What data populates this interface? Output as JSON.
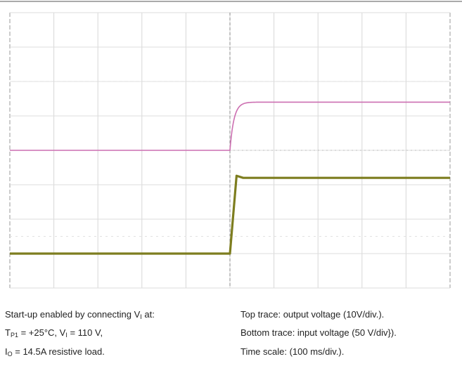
{
  "chart_data": {
    "type": "line",
    "grid": true,
    "x_divisions": 10,
    "y_divisions": 8,
    "series": [
      {
        "name": "Top trace: output voltage",
        "color": "#cc6fb1",
        "units": "div",
        "x": [
          0,
          1,
          2,
          3,
          4,
          5,
          6,
          7,
          8,
          9,
          10
        ],
        "y": [
          4.0,
          4.0,
          4.0,
          4.0,
          4.0,
          5.4,
          5.4,
          5.4,
          5.4,
          5.4,
          5.4
        ]
      },
      {
        "name": "Bottom trace: input voltage",
        "color": "#7d7d1f",
        "units": "div",
        "x": [
          0,
          1,
          2,
          3,
          4,
          5,
          6,
          7,
          8,
          9,
          10
        ],
        "y": [
          1.0,
          1.0,
          1.0,
          1.0,
          1.0,
          3.2,
          3.2,
          3.2,
          3.2,
          3.2,
          3.2
        ]
      }
    ],
    "events": {
      "startup_time_div": 5
    }
  },
  "caption": {
    "left_line1_a": "Start-up enabled by connecting V",
    "left_line1_sub": "I",
    "left_line1_b": " at:",
    "left_line2_a": "T",
    "left_line2_sub1": "P1",
    "left_line2_b": " = +25°C, V",
    "left_line2_sub2": "I",
    "left_line2_c": " = 110 V,",
    "left_line3_a": "I",
    "left_line3_sub": "O",
    "left_line3_b": " = 14.5A resistive load.",
    "right_line1": "Top trace: output voltage (10V/div.).",
    "right_line2": "Bottom trace: input voltage (50 V/div}).",
    "right_line3": "Time scale: (100 ms/div.)."
  }
}
